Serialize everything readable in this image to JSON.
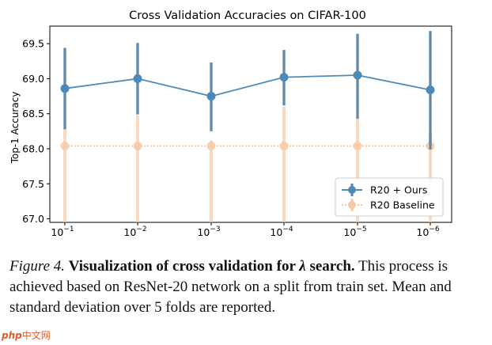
{
  "chart_data": {
    "type": "line",
    "title": "Cross Validation Accuracies on CIFAR-100",
    "xlabel": "",
    "ylabel": "Top-1 Accuracy",
    "categories": [
      {
        "base": "10",
        "exp": "−1"
      },
      {
        "base": "10",
        "exp": "−2"
      },
      {
        "base": "10",
        "exp": "−3"
      },
      {
        "base": "10",
        "exp": "−4"
      },
      {
        "base": "10",
        "exp": "−5"
      },
      {
        "base": "10",
        "exp": "−6"
      }
    ],
    "ylim": [
      66.95,
      69.75
    ],
    "yticks": [
      67.0,
      67.5,
      68.0,
      68.5,
      69.0,
      69.5
    ],
    "ytick_labels": [
      "67.0",
      "67.5",
      "68.0",
      "68.5",
      "69.0",
      "69.5"
    ],
    "grid": false,
    "legend_position": "bottom-right",
    "series": [
      {
        "name": "R20 + Ours",
        "color": "#4e8ab8",
        "values": [
          68.86,
          69.0,
          68.75,
          69.02,
          69.05,
          68.84
        ],
        "err_low": [
          68.28,
          68.49,
          68.25,
          68.62,
          68.43,
          67.99
        ],
        "err_high": [
          69.44,
          69.51,
          69.23,
          69.41,
          69.64,
          69.68
        ]
      },
      {
        "name": "R20 Baseline",
        "color": "#f6c9a4",
        "values": [
          68.04,
          68.04,
          68.04,
          68.04,
          68.04,
          68.04
        ],
        "err_low": [
          66.95,
          66.95,
          66.95,
          66.95,
          66.95,
          66.95
        ],
        "err_high": [
          68.3,
          68.48,
          68.12,
          68.6,
          68.45,
          68.2
        ]
      }
    ]
  },
  "caption": {
    "label": "Figure 4.",
    "title_before": "Visualization of cross validation for ",
    "lambda": "λ",
    "title_after": " search.",
    "body": "This process is achieved based on ResNet-20 network on a split from train set. Mean and standard deviation over 5 folds are reported."
  },
  "watermark": {
    "logo": "php",
    "text": "中文网"
  }
}
